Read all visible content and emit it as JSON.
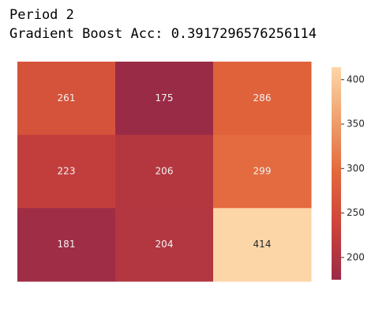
{
  "chart_data": {
    "type": "heatmap",
    "title": "Period 2",
    "subtitle": "Gradient Boost Acc: 0.3917296576256114",
    "values": [
      [
        261,
        175,
        286
      ],
      [
        223,
        206,
        299
      ],
      [
        181,
        204,
        414
      ]
    ],
    "clim": [
      175,
      414
    ],
    "cticks": [
      200,
      250,
      300,
      350,
      400
    ],
    "colors": [
      "#9a2b46",
      "#cc433b",
      "#e2673b",
      "#efa06c",
      "#fdd6a8"
    ]
  }
}
